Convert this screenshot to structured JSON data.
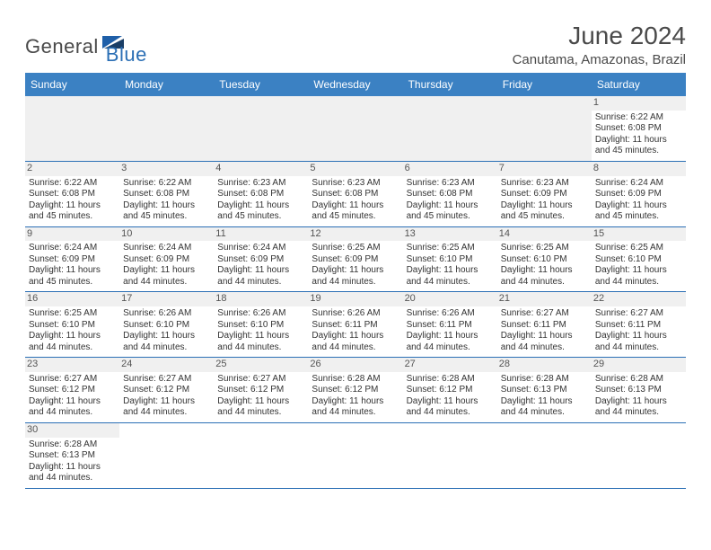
{
  "brand": {
    "text_dark": "General",
    "text_blue": "Blue",
    "flag_color": "#1f5fa8"
  },
  "title": "June 2024",
  "location": "Canutama, Amazonas, Brazil",
  "colors": {
    "header_bg": "#3b81c3",
    "header_text": "#ffffff",
    "row_divider": "#2b6fb5",
    "blank_bg": "#f0f0f0",
    "text": "#333333",
    "title_text": "#4a4a4a"
  },
  "weekday_headers": [
    "Sunday",
    "Monday",
    "Tuesday",
    "Wednesday",
    "Thursday",
    "Friday",
    "Saturday"
  ],
  "labels": {
    "sunrise": "Sunrise:",
    "sunset": "Sunset:",
    "daylight": "Daylight:"
  },
  "weeks": [
    [
      null,
      null,
      null,
      null,
      null,
      null,
      {
        "n": 1,
        "sunrise": "6:22 AM",
        "sunset": "6:08 PM",
        "daylight": "11 hours and 45 minutes."
      }
    ],
    [
      {
        "n": 2,
        "sunrise": "6:22 AM",
        "sunset": "6:08 PM",
        "daylight": "11 hours and 45 minutes."
      },
      {
        "n": 3,
        "sunrise": "6:22 AM",
        "sunset": "6:08 PM",
        "daylight": "11 hours and 45 minutes."
      },
      {
        "n": 4,
        "sunrise": "6:23 AM",
        "sunset": "6:08 PM",
        "daylight": "11 hours and 45 minutes."
      },
      {
        "n": 5,
        "sunrise": "6:23 AM",
        "sunset": "6:08 PM",
        "daylight": "11 hours and 45 minutes."
      },
      {
        "n": 6,
        "sunrise": "6:23 AM",
        "sunset": "6:08 PM",
        "daylight": "11 hours and 45 minutes."
      },
      {
        "n": 7,
        "sunrise": "6:23 AM",
        "sunset": "6:09 PM",
        "daylight": "11 hours and 45 minutes."
      },
      {
        "n": 8,
        "sunrise": "6:24 AM",
        "sunset": "6:09 PM",
        "daylight": "11 hours and 45 minutes."
      }
    ],
    [
      {
        "n": 9,
        "sunrise": "6:24 AM",
        "sunset": "6:09 PM",
        "daylight": "11 hours and 45 minutes."
      },
      {
        "n": 10,
        "sunrise": "6:24 AM",
        "sunset": "6:09 PM",
        "daylight": "11 hours and 44 minutes."
      },
      {
        "n": 11,
        "sunrise": "6:24 AM",
        "sunset": "6:09 PM",
        "daylight": "11 hours and 44 minutes."
      },
      {
        "n": 12,
        "sunrise": "6:25 AM",
        "sunset": "6:09 PM",
        "daylight": "11 hours and 44 minutes."
      },
      {
        "n": 13,
        "sunrise": "6:25 AM",
        "sunset": "6:10 PM",
        "daylight": "11 hours and 44 minutes."
      },
      {
        "n": 14,
        "sunrise": "6:25 AM",
        "sunset": "6:10 PM",
        "daylight": "11 hours and 44 minutes."
      },
      {
        "n": 15,
        "sunrise": "6:25 AM",
        "sunset": "6:10 PM",
        "daylight": "11 hours and 44 minutes."
      }
    ],
    [
      {
        "n": 16,
        "sunrise": "6:25 AM",
        "sunset": "6:10 PM",
        "daylight": "11 hours and 44 minutes."
      },
      {
        "n": 17,
        "sunrise": "6:26 AM",
        "sunset": "6:10 PM",
        "daylight": "11 hours and 44 minutes."
      },
      {
        "n": 18,
        "sunrise": "6:26 AM",
        "sunset": "6:10 PM",
        "daylight": "11 hours and 44 minutes."
      },
      {
        "n": 19,
        "sunrise": "6:26 AM",
        "sunset": "6:11 PM",
        "daylight": "11 hours and 44 minutes."
      },
      {
        "n": 20,
        "sunrise": "6:26 AM",
        "sunset": "6:11 PM",
        "daylight": "11 hours and 44 minutes."
      },
      {
        "n": 21,
        "sunrise": "6:27 AM",
        "sunset": "6:11 PM",
        "daylight": "11 hours and 44 minutes."
      },
      {
        "n": 22,
        "sunrise": "6:27 AM",
        "sunset": "6:11 PM",
        "daylight": "11 hours and 44 minutes."
      }
    ],
    [
      {
        "n": 23,
        "sunrise": "6:27 AM",
        "sunset": "6:12 PM",
        "daylight": "11 hours and 44 minutes."
      },
      {
        "n": 24,
        "sunrise": "6:27 AM",
        "sunset": "6:12 PM",
        "daylight": "11 hours and 44 minutes."
      },
      {
        "n": 25,
        "sunrise": "6:27 AM",
        "sunset": "6:12 PM",
        "daylight": "11 hours and 44 minutes."
      },
      {
        "n": 26,
        "sunrise": "6:28 AM",
        "sunset": "6:12 PM",
        "daylight": "11 hours and 44 minutes."
      },
      {
        "n": 27,
        "sunrise": "6:28 AM",
        "sunset": "6:12 PM",
        "daylight": "11 hours and 44 minutes."
      },
      {
        "n": 28,
        "sunrise": "6:28 AM",
        "sunset": "6:13 PM",
        "daylight": "11 hours and 44 minutes."
      },
      {
        "n": 29,
        "sunrise": "6:28 AM",
        "sunset": "6:13 PM",
        "daylight": "11 hours and 44 minutes."
      }
    ],
    [
      {
        "n": 30,
        "sunrise": "6:28 AM",
        "sunset": "6:13 PM",
        "daylight": "11 hours and 44 minutes."
      },
      null,
      null,
      null,
      null,
      null,
      null
    ]
  ]
}
